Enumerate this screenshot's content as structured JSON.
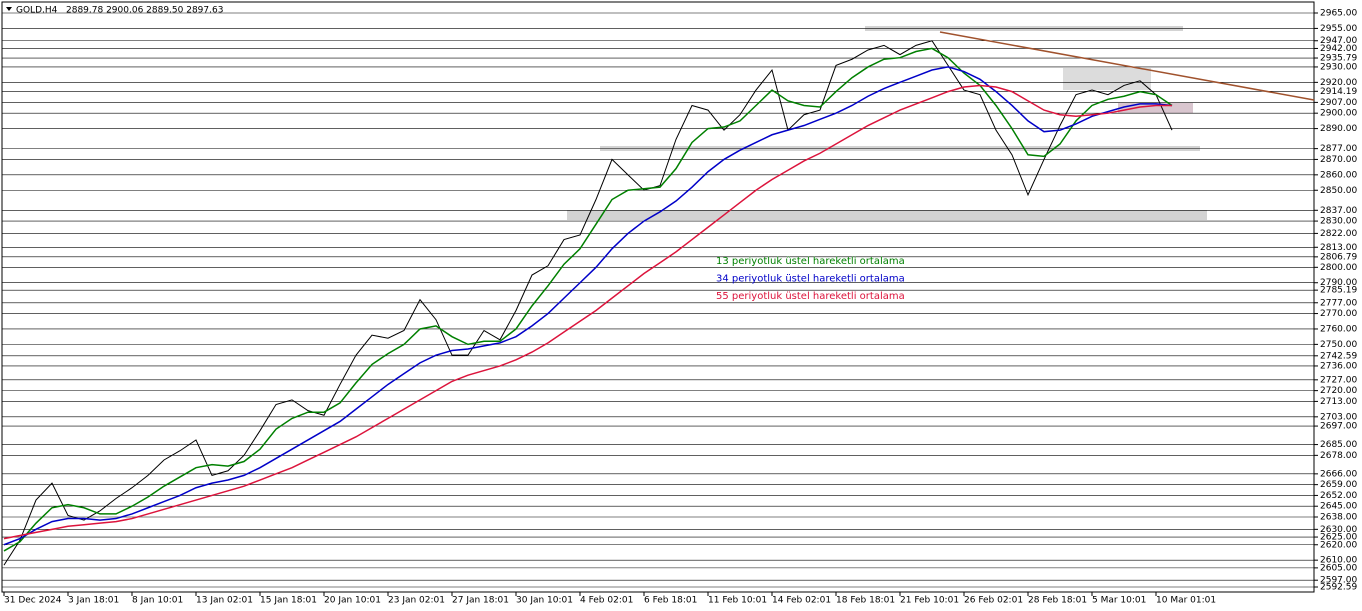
{
  "chart_data": {
    "type": "line",
    "title": "GOLD.H4",
    "subtitle": "2889.78 2900.06 2889.50 2897.63",
    "categories": [
      "31 Dec 2024",
      null,
      null,
      null,
      "3 Jan 18:01",
      null,
      null,
      null,
      "8 Jan 10:01",
      null,
      null,
      null,
      "13 Jan 02:01",
      null,
      null,
      null,
      "15 Jan 18:01",
      null,
      null,
      null,
      "20 Jan 10:01",
      null,
      null,
      null,
      "23 Jan 02:01",
      null,
      null,
      null,
      "27 Jan 18:01",
      null,
      null,
      null,
      "30 Jan 10:01",
      null,
      null,
      null,
      "4 Feb 02:01",
      null,
      null,
      null,
      "6 Feb 18:01",
      null,
      null,
      null,
      "11 Feb 10:01",
      null,
      null,
      null,
      "14 Feb 02:01",
      null,
      null,
      null,
      "18 Feb 18:01",
      null,
      null,
      null,
      "21 Feb 10:01",
      null,
      null,
      null,
      "26 Feb 02:01",
      null,
      null,
      null,
      "28 Feb 18:01",
      null,
      null,
      null,
      "5 Mar 10:01",
      null,
      null,
      null,
      "10 Mar 01:01",
      null
    ],
    "series": [
      {
        "color": "#000000",
        "values": [
          2606.8,
          2623,
          2649,
          2660,
          2639,
          2636,
          2642,
          2650,
          2657,
          2665,
          2675,
          2681,
          2688,
          2665,
          2668,
          2678,
          2694,
          2711,
          2714,
          2707,
          2704,
          2724,
          2743,
          2756,
          2754,
          2759,
          2779,
          2766,
          2743,
          2743,
          2759,
          2753,
          2772,
          2795,
          2801,
          2818,
          2821,
          2844,
          2870,
          2860,
          2850,
          2853,
          2883,
          2905,
          2902,
          2889,
          2899,
          2915,
          2928,
          2889,
          2899,
          2902,
          2931,
          2935,
          2941,
          2944,
          2938,
          2944,
          2947,
          2931,
          2915,
          2912,
          2889,
          2873,
          2847,
          2870,
          2892,
          2912,
          2915,
          2912,
          2918,
          2921,
          2912,
          2889
        ]
      },
      {
        "name": "13 periyotluk üstel hareketli ortalama",
        "color": "#008000",
        "values": [
          2616,
          2622,
          2634,
          2644,
          2646,
          2644,
          2640,
          2640,
          2645,
          2651,
          2658,
          2664,
          2670,
          2672,
          2671,
          2674,
          2682,
          2695,
          2702,
          2706,
          2706,
          2712,
          2725,
          2737,
          2744,
          2750,
          2760,
          2762,
          2755,
          2750,
          2752,
          2752,
          2760,
          2775,
          2788,
          2802,
          2812,
          2828,
          2844,
          2850,
          2851,
          2852,
          2864,
          2881,
          2890,
          2891,
          2895,
          2905,
          2915,
          2908,
          2905,
          2904,
          2914,
          2923,
          2930,
          2935,
          2936,
          2940,
          2942,
          2936,
          2926,
          2918,
          2905,
          2890,
          2873,
          2872,
          2880,
          2895,
          2905,
          2909,
          2911,
          2914,
          2912,
          2905
        ]
      },
      {
        "name": "34 periyotluk üstel hareketli ortalama",
        "color": "#0000c8",
        "values": [
          2620,
          2624,
          2630,
          2635,
          2637,
          2637,
          2636,
          2637,
          2640,
          2644,
          2648,
          2652,
          2657,
          2660,
          2662,
          2665,
          2670,
          2676,
          2682,
          2688,
          2694,
          2700,
          2708,
          2716,
          2724,
          2731,
          2738,
          2743,
          2746,
          2747,
          2749,
          2751,
          2755,
          2762,
          2770,
          2780,
          2790,
          2800,
          2812,
          2822,
          2830,
          2836,
          2843,
          2852,
          2862,
          2870,
          2876,
          2881,
          2886,
          2889,
          2892,
          2896,
          2900,
          2905,
          2911,
          2916,
          2920,
          2924,
          2928,
          2930,
          2927,
          2922,
          2914,
          2905,
          2895,
          2888,
          2889,
          2893,
          2898,
          2901,
          2904,
          2906,
          2906,
          2905
        ]
      },
      {
        "name": "55 periyotluk üstel hareketli ortalama",
        "color": "#dc143c",
        "values": [
          2624,
          2626,
          2628,
          2630,
          2632,
          2633,
          2634,
          2635,
          2637,
          2640,
          2643,
          2646,
          2649,
          2652,
          2655,
          2658,
          2662,
          2666,
          2670,
          2675,
          2680,
          2685,
          2690,
          2696,
          2702,
          2708,
          2714,
          2720,
          2726,
          2730,
          2733,
          2736,
          2740,
          2745,
          2751,
          2758,
          2765,
          2772,
          2780,
          2788,
          2796,
          2803,
          2810,
          2818,
          2826,
          2834,
          2842,
          2850,
          2857,
          2863,
          2869,
          2874,
          2880,
          2886,
          2892,
          2897,
          2902,
          2906,
          2910,
          2914,
          2917,
          2918,
          2917,
          2914,
          2908,
          2902,
          2899,
          2898,
          2899,
          2900,
          2902,
          2904,
          2905,
          2905
        ]
      }
    ],
    "ylim": [
      2592.59,
      2965
    ],
    "yticks": [
      {
        "value": 2965,
        "label": "2965.00"
      },
      {
        "value": 2955,
        "label": "2955.00"
      },
      {
        "value": 2947,
        "label": "2947.00"
      },
      {
        "value": 2942,
        "label": "2942.00"
      },
      2935.79,
      {
        "value": 2930,
        "label": "2930.00"
      },
      {
        "value": 2920,
        "label": "2920.00"
      },
      2914.19,
      {
        "value": 2907,
        "label": "2907.00"
      },
      {
        "value": 2900,
        "label": "2900.00"
      },
      {
        "value": 2890,
        "label": "2890.00"
      },
      {
        "value": 2877,
        "label": "2877.00"
      },
      {
        "value": 2870,
        "label": "2870.00"
      },
      {
        "value": 2860,
        "label": "2860.00"
      },
      {
        "value": 2850,
        "label": "2850.00"
      },
      {
        "value": 2837,
        "label": "2837.00"
      },
      {
        "value": 2830,
        "label": "2830.00"
      },
      {
        "value": 2822,
        "label": "2822.00"
      },
      {
        "value": 2813,
        "label": "2813.00"
      },
      2806.79,
      {
        "value": 2800,
        "label": "2800.00"
      },
      {
        "value": 2790,
        "label": "2790.00"
      },
      2785.19,
      {
        "value": 2777,
        "label": "2777.00"
      },
      {
        "value": 2770,
        "label": "2770.00"
      },
      {
        "value": 2760,
        "label": "2760.00"
      },
      {
        "value": 2750,
        "label": "2750.00"
      },
      2742.59,
      {
        "value": 2736,
        "label": "2736.00"
      },
      {
        "value": 2727,
        "label": "2727.00"
      },
      {
        "value": 2720,
        "label": "2720.00"
      },
      {
        "value": 2713,
        "label": "2713.00"
      },
      {
        "value": 2703,
        "label": "2703.00"
      },
      {
        "value": 2697,
        "label": "2697.00"
      },
      {
        "value": 2685,
        "label": "2685.00"
      },
      {
        "value": 2678,
        "label": "2678.00"
      },
      {
        "value": 2666,
        "label": "2666.00"
      },
      {
        "value": 2659,
        "label": "2659.00"
      },
      {
        "value": 2652,
        "label": "2652.00"
      },
      {
        "value": 2645,
        "label": "2645.00"
      },
      {
        "value": 2638,
        "label": "2638.00"
      },
      {
        "value": 2630,
        "label": "2630.00"
      },
      {
        "value": 2625,
        "label": "2625.00"
      },
      {
        "value": 2620,
        "label": "2620.00"
      },
      {
        "value": 2610,
        "label": "2610.00"
      },
      {
        "value": 2605,
        "label": "2605.00"
      },
      {
        "value": 2597,
        "label": "2597.00"
      },
      2592.59
    ],
    "grid": true
  }
}
